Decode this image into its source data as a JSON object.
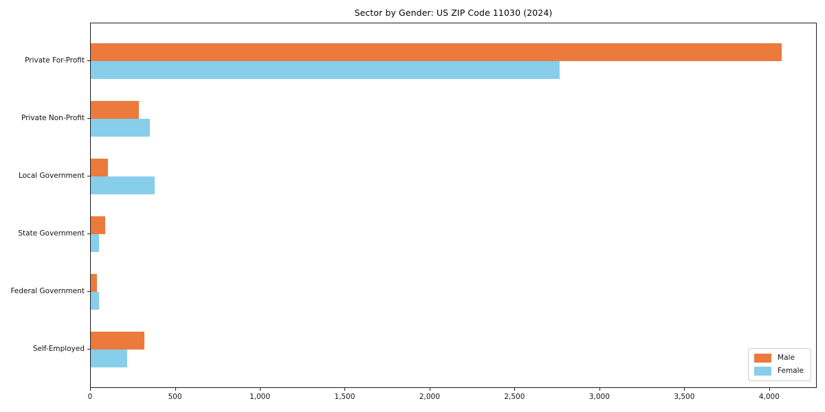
{
  "figure": {
    "title": "Sector by Gender: US ZIP Code 11030 (2024)"
  },
  "chart_data": {
    "type": "bar",
    "orientation": "horizontal",
    "title": "Sector by Gender: US ZIP Code 11030 (2024)",
    "categories": [
      "Private For-Profit",
      "Private Non-Profit",
      "Local Government",
      "State Government",
      "Federal Government",
      "Self-Employed"
    ],
    "series": [
      {
        "name": "Male",
        "color": "#ec7a3d",
        "values": [
          4070,
          285,
          100,
          85,
          35,
          315
        ]
      },
      {
        "name": "Female",
        "color": "#87ceeb",
        "values": [
          2760,
          350,
          375,
          50,
          48,
          215
        ]
      }
    ],
    "xlabel": "",
    "ylabel": "",
    "xlim": [
      0,
      4280
    ],
    "xticks": [
      0,
      500,
      1000,
      1500,
      2000,
      2500,
      3000,
      3500,
      4000
    ],
    "xtick_labels": [
      "0",
      "500",
      "1,000",
      "1,500",
      "2,000",
      "2,500",
      "3,000",
      "3,500",
      "4,000"
    ],
    "grid": false,
    "legend": {
      "position": "lower-right",
      "entries": [
        "Male",
        "Female"
      ]
    }
  }
}
